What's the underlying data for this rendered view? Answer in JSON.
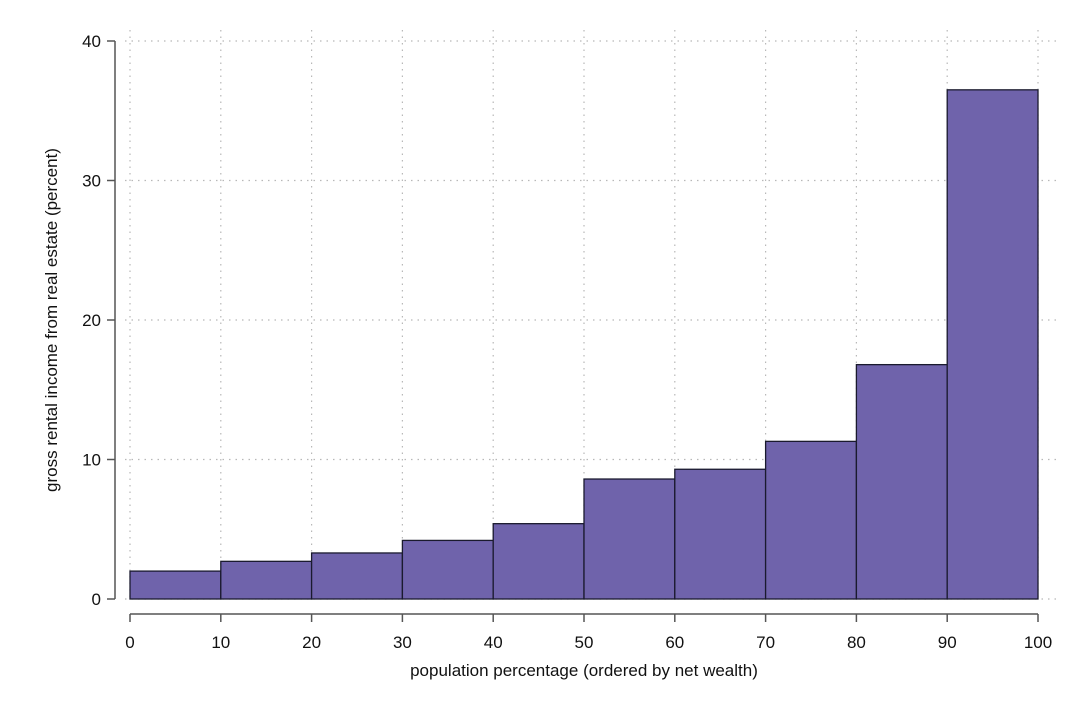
{
  "chart_data": {
    "type": "bar",
    "title": "",
    "xlabel": "population percentage (ordered by net wealth)",
    "ylabel": "gross rental income from real estate (percent)",
    "x_ticks": [
      "0",
      "10",
      "20",
      "30",
      "40",
      "50",
      "60",
      "70",
      "80",
      "90",
      "100"
    ],
    "y_ticks": [
      "0",
      "10",
      "20",
      "30",
      "40"
    ],
    "xlim": [
      0,
      100
    ],
    "ylim": [
      0,
      40
    ],
    "bins": [
      {
        "from": 0,
        "to": 10,
        "value": 2.0
      },
      {
        "from": 10,
        "to": 20,
        "value": 2.7
      },
      {
        "from": 20,
        "to": 30,
        "value": 3.3
      },
      {
        "from": 30,
        "to": 40,
        "value": 4.2
      },
      {
        "from": 40,
        "to": 50,
        "value": 5.4
      },
      {
        "from": 50,
        "to": 60,
        "value": 8.6
      },
      {
        "from": 60,
        "to": 70,
        "value": 9.3
      },
      {
        "from": 70,
        "to": 80,
        "value": 11.3
      },
      {
        "from": 80,
        "to": 90,
        "value": 16.8
      },
      {
        "from": 90,
        "to": 100,
        "value": 36.5
      }
    ],
    "grid": "dotted",
    "colors": {
      "bar_fill": "#6f63ab",
      "bar_stroke": "#1a1a2e",
      "grid": "#b8b8b8",
      "axis": "#555555"
    }
  }
}
